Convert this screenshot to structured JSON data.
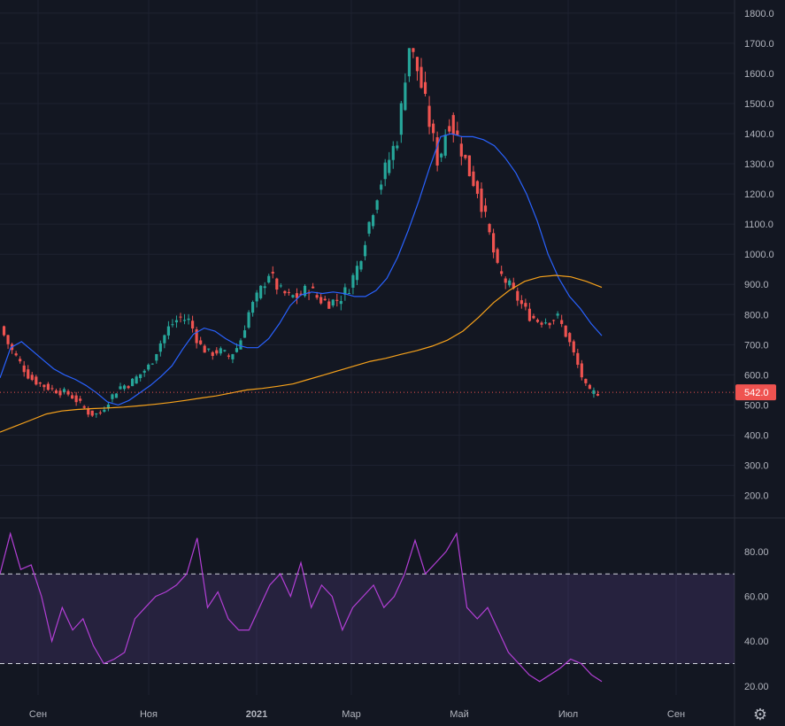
{
  "chart_data": [
    {
      "type": "candlestick",
      "title": "",
      "x_tick_labels": [
        "Сен",
        "Ноя",
        "2021",
        "Мар",
        "Май",
        "Июл",
        "Сен"
      ],
      "y_ticks": [
        200,
        300,
        400,
        500,
        600,
        700,
        800,
        900,
        1000,
        1100,
        1200,
        1300,
        1400,
        1500,
        1600,
        1700,
        1800
      ],
      "y_tick_labels": [
        "200.0",
        "300.0",
        "400.0",
        "500.0",
        "600.0",
        "700.0",
        "800.0",
        "900.0",
        "1000.0",
        "1100.0",
        "1200.0",
        "1300.0",
        "1400.0",
        "1500.0",
        "1600.0",
        "1700.0",
        "1800.0"
      ],
      "ylim": [
        140,
        1820
      ],
      "last_price": 542,
      "last_price_label": "542.0",
      "up_color": "#26a69a",
      "down_color": "#ef5350",
      "grid": true,
      "series": [
        {
          "kind": "ohlc",
          "values": [
            760,
            690,
            640,
            590,
            570,
            555,
            545,
            535,
            505,
            470,
            470,
            520,
            560,
            570,
            600,
            630,
            700,
            760,
            790,
            780,
            700,
            670,
            680,
            660,
            700,
            810,
            870,
            940,
            880,
            860,
            860,
            890,
            850,
            840,
            850,
            890,
            970,
            1100,
            1220,
            1310,
            1400,
            1700,
            1600,
            1450,
            1300,
            1450,
            1380,
            1280,
            1210,
            1080,
            940,
            900,
            850,
            800,
            780,
            780,
            790,
            720,
            630,
            540,
            542
          ]
        },
        {
          "kind": "line",
          "color": "#2962ff",
          "values": [
            590,
            690,
            710,
            680,
            650,
            620,
            600,
            585,
            565,
            540,
            510,
            500,
            515,
            540,
            565,
            595,
            630,
            685,
            735,
            755,
            745,
            720,
            700,
            690,
            690,
            720,
            770,
            830,
            865,
            875,
            870,
            875,
            870,
            860,
            860,
            880,
            920,
            990,
            1080,
            1180,
            1290,
            1390,
            1400,
            1390,
            1390,
            1380,
            1360,
            1320,
            1270,
            1200,
            1110,
            1000,
            920,
            860,
            820,
            770,
            730
          ]
        },
        {
          "kind": "line",
          "color": "#f7a21b",
          "values": [
            410,
            430,
            450,
            470,
            480,
            485,
            488,
            490,
            493,
            497,
            502,
            508,
            515,
            523,
            530,
            540,
            550,
            555,
            562,
            570,
            585,
            600,
            615,
            630,
            645,
            655,
            668,
            680,
            695,
            715,
            745,
            790,
            840,
            880,
            910,
            925,
            930,
            925,
            910,
            890
          ]
        },
        {
          "kind": "rsi",
          "color": "#b33fd6",
          "overbought": 70,
          "oversold": 30,
          "y_tick_labels": [
            "20.00",
            "40.00",
            "60.00",
            "80.00"
          ],
          "ylim": [
            16,
            93
          ],
          "values": [
            70,
            88,
            72,
            74,
            60,
            40,
            55,
            45,
            50,
            38,
            30,
            32,
            35,
            50,
            55,
            60,
            62,
            65,
            70,
            86,
            55,
            62,
            50,
            45,
            45,
            55,
            65,
            70,
            60,
            75,
            55,
            65,
            60,
            45,
            55,
            60,
            65,
            55,
            60,
            70,
            85,
            70,
            75,
            80,
            88,
            55,
            50,
            55,
            45,
            35,
            30,
            25,
            22,
            25,
            28,
            32,
            30,
            25,
            22
          ]
        }
      ]
    }
  ]
}
